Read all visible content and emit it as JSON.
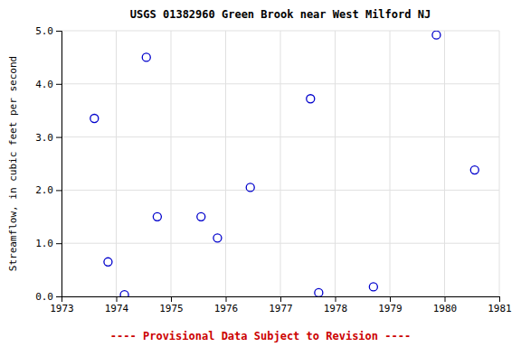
{
  "chart_data": {
    "type": "scatter",
    "title": "USGS 01382960 Green Brook near West Milford NJ",
    "ylabel": "Streamflow, in cubic feet per second",
    "annotation": "---- Provisional Data Subject to Revision ----",
    "x": [
      1973.6,
      1973.85,
      1974.15,
      1974.55,
      1974.75,
      1975.55,
      1975.85,
      1976.45,
      1977.55,
      1977.7,
      1978.7,
      1979.85,
      1980.55
    ],
    "values": [
      3.35,
      0.65,
      0.03,
      4.5,
      1.5,
      1.5,
      1.1,
      2.05,
      3.72,
      0.07,
      0.18,
      4.92,
      2.38
    ],
    "color": "#0000CC",
    "marker": "circle",
    "xlim": [
      1973,
      1981
    ],
    "ylim": [
      0.0,
      5.0
    ],
    "xticks": [
      1973,
      1974,
      1975,
      1976,
      1977,
      1978,
      1979,
      1980,
      1981
    ],
    "yticks": [
      {
        "value": 0.0,
        "label": "0.0"
      },
      {
        "value": 1.0,
        "label": "1.0"
      },
      {
        "value": 2.0,
        "label": "2.0"
      },
      {
        "value": 3.0,
        "label": "3.0"
      },
      {
        "value": 4.0,
        "label": "4.0"
      },
      {
        "value": 5.0,
        "label": "5.0"
      }
    ],
    "grid": true
  }
}
